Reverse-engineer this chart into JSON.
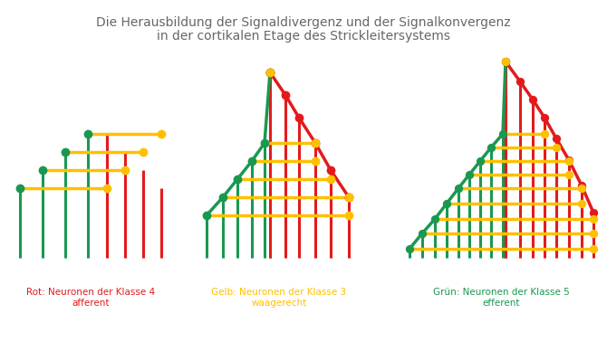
{
  "title_line1": "Die Herausbildung der Signaldivergenz und der Signalkonvergenz",
  "title_line2": "in der cortikalen Etage des Strickleitersystems",
  "title_color": "#666666",
  "title_fontsize": 10,
  "bg_color": "#ffffff",
  "green": "#1a9850",
  "yellow": "#FFC000",
  "red": "#e31a1c",
  "label1": "Rot: Neuronen der Klasse 4\nafferent",
  "label2": "Gelb: Neuronen der Klasse 3\nwaagerecht",
  "label3": "Grün: Neuronen der Klasse 5\nefferent",
  "label1_color": "#e31a1c",
  "label2_color": "#FFC000",
  "label3_color": "#1a9850",
  "lw": 2.2,
  "dot_size": 50
}
